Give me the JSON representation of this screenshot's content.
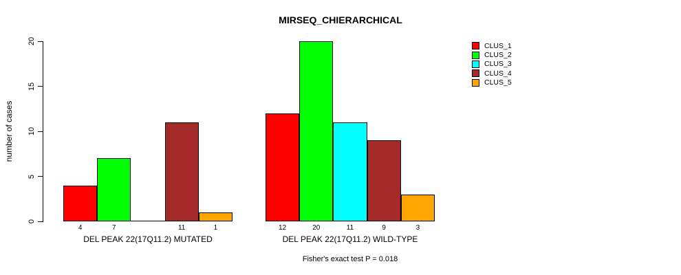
{
  "chart_data": {
    "type": "bar",
    "title": "MIRSEQ_CHIERARCHICAL",
    "ylabel": "number of cases",
    "ylim": [
      0,
      20
    ],
    "yticks": [
      0,
      5,
      10,
      15,
      20
    ],
    "grid": false,
    "legend_position": "right",
    "series": [
      {
        "name": "CLUS_1",
        "color": "#FF0000",
        "values": [
          4,
          12
        ]
      },
      {
        "name": "CLUS_2",
        "color": "#00FF00",
        "values": [
          7,
          20
        ]
      },
      {
        "name": "CLUS_3",
        "color": "#00FFFF",
        "values": [
          0,
          11
        ]
      },
      {
        "name": "CLUS_4",
        "color": "#A52A2A",
        "values": [
          11,
          9
        ]
      },
      {
        "name": "CLUS_5",
        "color": "#FFA500",
        "values": [
          1,
          3
        ]
      }
    ],
    "categories": [
      "DEL PEAK 22(17Q11.2) MUTATED",
      "DEL PEAK 22(17Q11.2) WILD-TYPE"
    ],
    "bar_value_labels": [
      [
        "4",
        "7",
        "",
        "11",
        "1"
      ],
      [
        "12",
        "20",
        "11",
        "9",
        "3"
      ]
    ],
    "footer": "Fisher's exact test P = 0.018"
  }
}
